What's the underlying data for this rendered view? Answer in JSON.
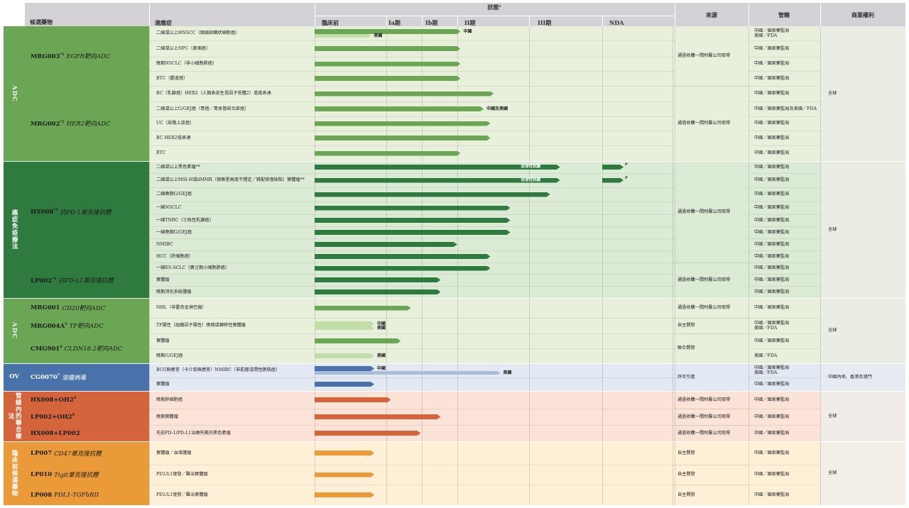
{
  "header": {
    "candidate": "候選藥物",
    "indication": "適應症",
    "status": "狀態",
    "status_sup": "a",
    "preclinical": "臨床前",
    "ia": "Ia期",
    "ib": "Ib期",
    "ii": "II期",
    "iii": "III期",
    "nda": "NDA",
    "source": "來源",
    "jurisdiction": "管轄",
    "rights": "商業權利"
  },
  "categories": [
    {
      "label": "ADC",
      "color": "#6aa653"
    },
    {
      "label": "癌症免疫療法",
      "color": "#2f7a3f"
    },
    {
      "label": "ADC",
      "color": "#6aa653"
    },
    {
      "label": "OV",
      "color": "#4a72aa"
    },
    {
      "label": "管線內的聯合療法",
      "color": "#d3643b"
    },
    {
      "label": "臨床前候選藥物",
      "color": "#ea9a38"
    }
  ],
  "drugs": [
    {
      "name": "MRG003",
      "sup": "*1",
      "target": "EGFR靶向ADC",
      "bg": "#6aa653",
      "color": "#1d1d1d"
    },
    {
      "name": "MRG002",
      "sup": "*2",
      "target": "HER2靶向ADC",
      "bg": "#6aa653",
      "color": "#1d1d1d"
    },
    {
      "name": "HX008",
      "sup": "*3",
      "target": "抗PD-1單克隆抗體",
      "bg": "#2f7a3f",
      "color": "#1d1d1d"
    },
    {
      "name": "LP002",
      "sup": "*4",
      "target": "抗PD-L1單克隆抗體",
      "bg": "#2f7a3f",
      "color": "#1d1d1d"
    },
    {
      "name": "MRG001",
      "sup": "",
      "target": "CD20靶向ADC",
      "bg": "#6aa653",
      "color": "#1d1d1d"
    },
    {
      "name": "MRG004A",
      "sup": "5",
      "target": "TF靶向ADC",
      "bg": "#6aa653",
      "color": "#1d1d1d"
    },
    {
      "name": "CMG901",
      "sup": "6",
      "target": "CLDN18.2靶向ADC",
      "bg": "#6aa653",
      "color": "#1d1d1d"
    },
    {
      "name": "CG0070",
      "sup": "7",
      "target": "溶瘤病毒",
      "bg": "#4a72aa",
      "color": "#ffffff"
    },
    {
      "name": "HX008+OH2",
      "sup": "8",
      "target": "",
      "bg": "#d3643b",
      "color": "#1d1d1d"
    },
    {
      "name": "LP002+OH2",
      "sup": "8",
      "target": "",
      "bg": "#d3643b",
      "color": "#1d1d1d"
    },
    {
      "name": "HX008+LP002",
      "sup": "",
      "target": "",
      "bg": "#d3643b",
      "color": "#1d1d1d"
    },
    {
      "name": "LP007",
      "sup": "",
      "target": "CD47單克隆抗體",
      "bg": "#ea9a38",
      "color": "#1d1d1d"
    },
    {
      "name": "LP010",
      "sup": "",
      "target": "Tigit單克隆抗體",
      "bg": "#ea9a38",
      "color": "#1d1d1d"
    },
    {
      "name": "LP008",
      "sup": "",
      "target": "PDL1-TGFbRII",
      "bg": "#ea9a38",
      "color": "#1d1d1d"
    }
  ],
  "rows": [
    {
      "indication": "二線或以上HNSCC（頭頸部鱗狀細胞癌）",
      "progress": 0.44,
      "label": "中國",
      "bar2": 0.17,
      "label2": "美國",
      "reg": "中國／國家藥監局\n美國／FDA",
      "color": "#6aa653",
      "color2": "#c2dea8"
    },
    {
      "indication": "二線或以上NPC（鼻咽癌）",
      "progress": 0.44,
      "reg": "中國／國家藥監局",
      "color": "#6aa653"
    },
    {
      "indication": "晚期NSCLC（非小細胞肺癌）",
      "progress": 0.44,
      "reg": "中國／國家藥監局",
      "color": "#6aa653"
    },
    {
      "indication": "BTC（膽道癌）",
      "progress": 0.44,
      "reg": "中國／國家藥監局",
      "color": "#6aa653"
    },
    {
      "indication": "BC（乳腺癌）HER2（人類表皮生長因子受體2）過度表達",
      "progress": 0.54,
      "reg": "中國／國家藥監局",
      "color": "#6aa653"
    },
    {
      "indication": "二線或以上G/GEJ癌（胃癌／胃食管結合部癌）",
      "progress": 0.51,
      "label": "中國及美國",
      "reg": "中國／國家藥監局及美國／FDA",
      "color": "#6aa653"
    },
    {
      "indication": "UC（尿路上皮癌）",
      "progress": 0.53,
      "reg": "中國／國家藥監局",
      "color": "#6aa653"
    },
    {
      "indication": "BC HER2低表達",
      "progress": 0.53,
      "reg": "中國／國家藥監局",
      "color": "#6aa653"
    },
    {
      "indication": "BTC",
      "progress": 0.44,
      "reg": "中國／國家藥監局",
      "color": "#6aa653"
    },
    {
      "indication": "二線或以上黑色素瘤**",
      "progress": 0.74,
      "label": "註冊性試驗",
      "nda": "P",
      "reg": "中國／國家藥監局",
      "color": "#2f7a3f"
    },
    {
      "indication": "二線或以上MSI-H或dMMR（微衛星高度不穩定／錯配修復缺陷）實體瘤**",
      "progress": 0.74,
      "label": "註冊性試驗",
      "nda": "P",
      "reg": "中國／國家藥監局",
      "color": "#2f7a3f"
    },
    {
      "indication": "二線晚期G/GEJ癌",
      "progress": 0.71,
      "reg": "中國／國家藥監局",
      "color": "#2f7a3f"
    },
    {
      "indication": "一線NSCLC",
      "progress": 0.59,
      "reg": "中國／國家藥監局",
      "color": "#2f7a3f"
    },
    {
      "indication": "一線TNBC（三陰性乳腺癌）",
      "progress": 0.59,
      "reg": "中國／國家藥監局",
      "color": "#2f7a3f"
    },
    {
      "indication": "一線晚期G/GEJ癌",
      "progress": 0.59,
      "reg": "中國／國家藥監局",
      "color": "#2f7a3f"
    },
    {
      "indication": "NMIBC",
      "progress": 0.43,
      "reg": "中國／國家藥監局",
      "color": "#2f7a3f"
    },
    {
      "indication": "HCC（肝細胞癌）",
      "progress": 0.53,
      "reg": "中國／國家藥監局",
      "color": "#2f7a3f"
    },
    {
      "indication": "一線ES-SCLC（廣泛期小細胞肺癌）",
      "progress": 0.53,
      "reg": "中國／國家藥監局",
      "color": "#2f7a3f"
    },
    {
      "indication": "實體瘤",
      "progress": 0.38,
      "reg": "中國／國家藥監局",
      "color": "#2f7a3f"
    },
    {
      "indication": "晚期消化系統腫瘤",
      "progress": 0.38,
      "reg": "中國／國家藥監局",
      "color": "#2f7a3f"
    },
    {
      "indication": "NHL（非霍奇金淋巴瘤）",
      "progress": 0.29,
      "reg": "中國／國家藥監局",
      "color": "#6aa653"
    },
    {
      "indication": "TF陽性（組織因子陽性）晚期或轉移性實體瘤",
      "progress": 0.18,
      "label": "中國",
      "bar2": 0.18,
      "label2": "美國",
      "reg": "中國／國家藥監局\n美國／FDA",
      "color": "#c2dea8",
      "color2": "#c2dea8"
    },
    {
      "indication": "實體瘤",
      "progress": 0.26,
      "reg": "中國／國家藥監局",
      "color": "#6aa653"
    },
    {
      "indication": "晚期G/GEJ癌",
      "progress": 0.18,
      "label": "美國",
      "reg": "美國／FDA",
      "color": "#c2dea8"
    },
    {
      "indication": "BCG無應答（卡介苗無應答）NMIBC（非肌層浸潤性膀胱癌）",
      "progress": 0.18,
      "label": "中國",
      "bar2": 0.56,
      "label2": "美國",
      "reg": "中國／國家藥監局\n美國／FDA",
      "color": "#4a72aa",
      "color2": "#a9bcd9"
    },
    {
      "indication": "實體瘤",
      "progress": 0.18,
      "reg": "中國／國家藥監局",
      "color": "#4a72aa"
    },
    {
      "indication": "晚期肝細胞癌",
      "progress": 0.23,
      "reg": "中國／國家藥監局",
      "color": "#d3643b"
    },
    {
      "indication": "晚期實體瘤",
      "progress": 0.38,
      "reg": "中國／國家藥監局",
      "color": "#d3643b"
    },
    {
      "indication": "先前PD-1/PD-L1治療失敗的黑色素瘤",
      "progress": 0.32,
      "reg": "中國／國家藥監局",
      "color": "#d3643b"
    },
    {
      "indication": "實體瘤／血液腫瘤",
      "progress": 0.18,
      "reg": "中國／國家藥監局",
      "color": "#ea9a38"
    },
    {
      "indication": "PD1/L1復發／難治實體瘤",
      "progress": 0.18,
      "reg": "中國／國家藥監局",
      "color": "#ea9a38"
    },
    {
      "indication": "PD1/L1復發／難治實體瘤",
      "progress": 0.18,
      "reg": "中國／國家藥監局",
      "color": "#ea9a38"
    }
  ],
  "sources": [
    "通過收購一間附屬公司取得",
    "通過收購一間附屬公司取得",
    "通過收購一間附屬公司取得",
    "通過收購一間附屬公司取得",
    "通過收購一間附屬公司取得",
    "自主開發",
    "聯合開發",
    "許可引進",
    "通過收購一間附屬公司取得",
    "通過收購一間附屬公司取得",
    "通過收購一間附屬公司取得",
    "自主開發",
    "自主開發",
    "自主開發"
  ],
  "rights": [
    "全球",
    "全球",
    "全球",
    "中國內地、香港及澳門",
    "全球",
    "全球"
  ]
}
